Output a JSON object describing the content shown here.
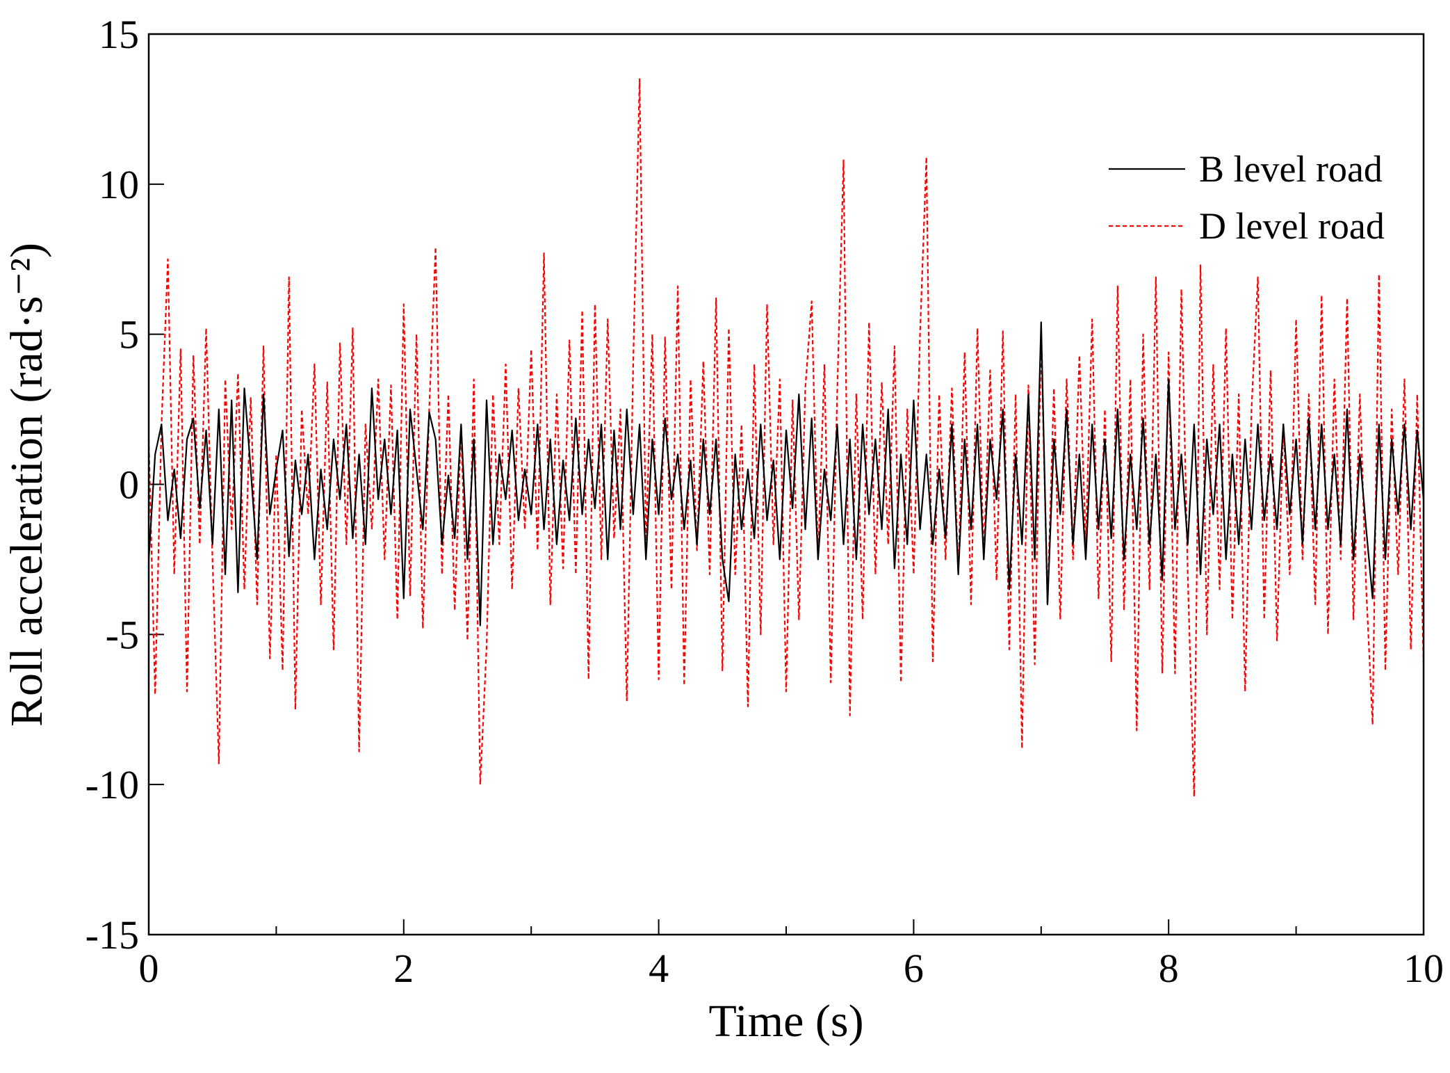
{
  "chart_data": {
    "type": "line",
    "xlabel": "Time (s)",
    "ylabel": "Roll acceleration (rad·s⁻²)",
    "xlim": [
      0,
      10
    ],
    "ylim": [
      -15,
      15
    ],
    "xticks": [
      0,
      2,
      4,
      6,
      8,
      10
    ],
    "xminor_ticks": [
      1,
      3,
      5,
      7,
      9
    ],
    "yticks": [
      -15,
      -10,
      -5,
      0,
      5,
      10,
      15
    ],
    "legend": "upper right",
    "x": [
      0,
      0.05,
      0.1,
      0.15,
      0.2,
      0.25,
      0.3,
      0.35,
      0.4,
      0.45,
      0.5,
      0.55,
      0.6,
      0.65,
      0.7,
      0.75,
      0.8,
      0.85,
      0.9,
      0.95,
      1,
      1.05,
      1.1,
      1.15,
      1.2,
      1.25,
      1.3,
      1.35,
      1.4,
      1.45,
      1.5,
      1.55,
      1.6,
      1.65,
      1.7,
      1.75,
      1.8,
      1.85,
      1.9,
      1.95,
      2,
      2.05,
      2.1,
      2.15,
      2.2,
      2.25,
      2.3,
      2.35,
      2.4,
      2.45,
      2.5,
      2.55,
      2.6,
      2.65,
      2.7,
      2.75,
      2.8,
      2.85,
      2.9,
      2.95,
      3,
      3.05,
      3.1,
      3.15,
      3.2,
      3.25,
      3.3,
      3.35,
      3.4,
      3.45,
      3.5,
      3.55,
      3.6,
      3.65,
      3.7,
      3.75,
      3.8,
      3.85,
      3.9,
      3.95,
      4,
      4.05,
      4.1,
      4.15,
      4.2,
      4.25,
      4.3,
      4.35,
      4.4,
      4.45,
      4.5,
      4.55,
      4.6,
      4.65,
      4.7,
      4.75,
      4.8,
      4.85,
      4.9,
      4.95,
      5,
      5.05,
      5.1,
      5.15,
      5.2,
      5.25,
      5.3,
      5.35,
      5.4,
      5.45,
      5.5,
      5.55,
      5.6,
      5.65,
      5.7,
      5.75,
      5.8,
      5.85,
      5.9,
      5.95,
      6,
      6.05,
      6.1,
      6.15,
      6.2,
      6.25,
      6.3,
      6.35,
      6.4,
      6.45,
      6.5,
      6.55,
      6.6,
      6.65,
      6.7,
      6.75,
      6.8,
      6.85,
      6.9,
      6.95,
      7,
      7.05,
      7.1,
      7.15,
      7.2,
      7.25,
      7.3,
      7.35,
      7.4,
      7.45,
      7.5,
      7.55,
      7.6,
      7.65,
      7.7,
      7.75,
      7.8,
      7.85,
      7.9,
      7.95,
      8,
      8.05,
      8.1,
      8.15,
      8.2,
      8.25,
      8.3,
      8.35,
      8.4,
      8.45,
      8.5,
      8.55,
      8.6,
      8.65,
      8.7,
      8.75,
      8.8,
      8.85,
      8.9,
      8.95,
      9,
      9.05,
      9.1,
      9.15,
      9.2,
      9.25,
      9.3,
      9.35,
      9.4,
      9.45,
      9.5,
      9.55,
      9.6,
      9.65,
      9.7,
      9.75,
      9.8,
      9.85,
      9.9,
      9.95,
      10
    ],
    "series": [
      {
        "name": "B level road",
        "color": "#000000",
        "dash": "solid",
        "values": [
          -2.5,
          1.0,
          2.0,
          -1.2,
          0.5,
          -1.8,
          1.5,
          2.2,
          -0.8,
          1.8,
          -2.0,
          2.5,
          -3.0,
          2.8,
          -3.6,
          3.2,
          0.5,
          -2.5,
          3.0,
          -1.0,
          0.5,
          1.8,
          -2.4,
          0.8,
          -1.0,
          1.0,
          -2.5,
          0.5,
          -1.5,
          1.5,
          -0.5,
          2.0,
          -1.8,
          1.0,
          -2.0,
          3.2,
          -0.5,
          1.5,
          -1.0,
          1.8,
          -3.8,
          2.5,
          0.5,
          -1.5,
          2.4,
          1.5,
          -2.0,
          0.3,
          -1.8,
          2.0,
          -2.5,
          1.5,
          -4.7,
          2.8,
          -2.0,
          1.0,
          -0.5,
          1.8,
          -1.2,
          0.5,
          -1.0,
          2.0,
          -1.5,
          1.5,
          -2.0,
          0.8,
          -1.2,
          2.2,
          -1.0,
          1.5,
          -0.8,
          2.0,
          -2.5,
          1.8,
          -1.5,
          2.5,
          -1.0,
          2.0,
          -2.5,
          1.5,
          -1.0,
          2.2,
          -0.5,
          1.0,
          -1.5,
          0.8,
          -2.0,
          1.5,
          -1.0,
          1.5,
          -2.5,
          -3.9,
          1.0,
          -1.5,
          0.5,
          -1.8,
          2.0,
          -1.2,
          0.8,
          -2.5,
          1.8,
          -0.8,
          3.0,
          -1.5,
          2.2,
          -2.5,
          0.5,
          -1.2,
          2.0,
          -2.0,
          1.5,
          -2.5,
          2.0,
          -1.0,
          1.5,
          -1.5,
          2.5,
          -2.8,
          1.0,
          -2.0,
          2.8,
          -1.5,
          1.0,
          -2.0,
          0.5,
          -1.8,
          2.0,
          -3.0,
          1.5,
          -1.5,
          2.0,
          -2.5,
          1.5,
          -0.5,
          2.5,
          -3.5,
          1.0,
          -2.0,
          3.0,
          -2.5,
          5.4,
          -4.0,
          1.5,
          -1.0,
          2.5,
          -2.0,
          1.0,
          -2.5,
          2.0,
          -1.5,
          1.5,
          -1.8,
          2.5,
          -2.5,
          1.0,
          -1.5,
          2.2,
          -2.0,
          1.0,
          -3.2,
          3.5,
          -1.5,
          1.0,
          -2.0,
          2.0,
          -3.0,
          1.5,
          -1.0,
          2.0,
          -2.5,
          1.0,
          -2.0,
          1.5,
          -1.5,
          2.0,
          -1.2,
          1.0,
          -1.5,
          2.0,
          -1.0,
          1.5,
          -2.0,
          2.2,
          -1.5,
          2.0,
          -1.5,
          1.0,
          -2.0,
          2.5,
          -2.5,
          1.0,
          -1.5,
          -3.8,
          2.0,
          -2.5,
          1.5,
          -1.0,
          2.0,
          -1.5,
          1.8,
          -0.5
        ]
      },
      {
        "name": "D level road",
        "color": "#ff0000",
        "dash": "dashed",
        "values": [
          1.5,
          -7.0,
          2.0,
          7.5,
          -3.0,
          4.5,
          -6.9,
          4.3,
          -2.0,
          5.2,
          -2.5,
          -9.3,
          3.5,
          -1.5,
          3.7,
          -3.5,
          2.9,
          -4.0,
          4.6,
          -5.8,
          1.0,
          -6.2,
          6.9,
          -7.5,
          2.5,
          -1.0,
          4.0,
          -4.0,
          3.4,
          -5.5,
          4.7,
          -2.0,
          5.2,
          -8.9,
          2.0,
          -1.5,
          3.5,
          -2.5,
          3.3,
          -4.5,
          6.0,
          -3.7,
          5.0,
          -4.8,
          2.5,
          7.9,
          -3.0,
          3.0,
          -4.2,
          2.0,
          -5.2,
          3.5,
          -10.0,
          -5.4,
          3.0,
          -2.0,
          4.0,
          -3.5,
          3.2,
          -1.5,
          4.5,
          -2.2,
          7.7,
          -4.0,
          3.0,
          -2.8,
          4.8,
          -3.0,
          5.8,
          -6.5,
          6.0,
          -2.5,
          5.5,
          -1.8,
          2.5,
          -7.2,
          4.0,
          13.5,
          -2.0,
          5.0,
          -6.5,
          4.9,
          -3.5,
          6.6,
          -6.7,
          3.5,
          -2.2,
          4.1,
          -3.0,
          6.2,
          -6.2,
          5.2,
          -3.0,
          2.0,
          -7.4,
          4.0,
          -5.0,
          6.0,
          -2.0,
          3.5,
          -6.9,
          2.8,
          -4.5,
          3.2,
          6.1,
          -2.5,
          4.0,
          -6.6,
          3.0,
          10.8,
          -7.7,
          3.0,
          -4.5,
          5.4,
          -3.0,
          3.4,
          -2.0,
          4.6,
          -6.6,
          2.5,
          -3.0,
          5.0,
          10.9,
          -5.9,
          3.0,
          -2.5,
          3.2,
          -3.0,
          4.4,
          -4.0,
          5.2,
          -2.5,
          3.8,
          -3.2,
          5.1,
          -5.5,
          3.0,
          -8.8,
          3.3,
          -6.0,
          5.0,
          -4.0,
          3.2,
          -4.5,
          3.5,
          -2.5,
          4.3,
          -2.0,
          5.5,
          -3.8,
          2.5,
          -5.9,
          6.6,
          -4.2,
          3.5,
          -8.2,
          5.0,
          -3.5,
          6.9,
          -6.3,
          4.4,
          -6.3,
          6.5,
          -3.0,
          -10.4,
          7.3,
          -5.0,
          4.0,
          -3.5,
          5.2,
          -4.5,
          3.0,
          -6.9,
          2.5,
          6.9,
          -4.5,
          3.8,
          -5.2,
          2.0,
          -3.0,
          5.5,
          -2.5,
          3.0,
          -4.0,
          6.3,
          -5.0,
          3.5,
          -2.5,
          6.2,
          -4.5,
          3.0,
          -3.5,
          -8.0,
          7.0,
          -6.2,
          2.5,
          -3.0,
          3.5,
          -5.5,
          3.0,
          -6.0
        ]
      }
    ]
  }
}
